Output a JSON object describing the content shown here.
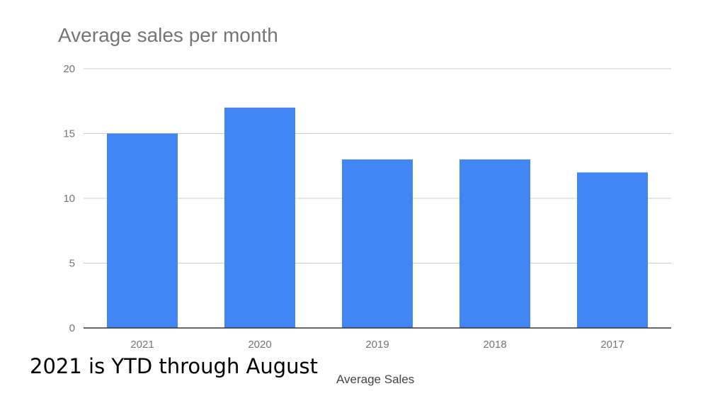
{
  "chart_data": {
    "type": "bar",
    "title": "Average sales per month",
    "categories": [
      "2021",
      "2020",
      "2019",
      "2018",
      "2017"
    ],
    "series": [
      {
        "name": "Average Sales",
        "values": [
          15,
          17,
          13,
          13,
          12
        ]
      }
    ],
    "xlabel": "Average Sales",
    "ylabel": "",
    "ylim": [
      0,
      20
    ],
    "yticks": [
      0,
      5,
      10,
      15,
      20
    ],
    "grid": true,
    "bar_color": "#4285f4",
    "gridline_color": "#cccccc",
    "baseline_color": "#333333",
    "label_color": "#757575"
  },
  "annotation": "2021 is YTD through August"
}
